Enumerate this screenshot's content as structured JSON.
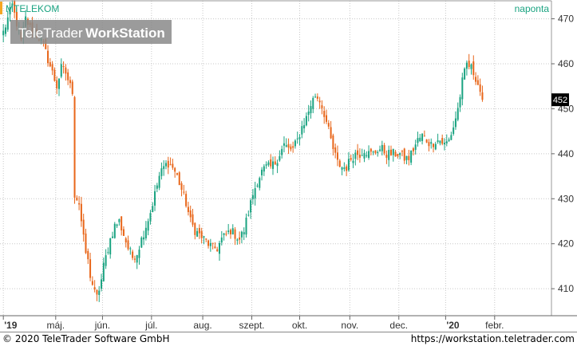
{
  "symbol": "MTELEKOM",
  "period": "naponta",
  "watermark": {
    "brand": "TeleTrader",
    "product": "WorkStation"
  },
  "footer": {
    "copyright": "© 2020 TeleTrader Software GmbH",
    "url": "https://workstation.teletrader.com"
  },
  "colors": {
    "up": "#1aa381",
    "down": "#e8661a",
    "accent": "#f5a623",
    "grid": "#c8c8c8",
    "last_marker": "#000000"
  },
  "chart_data": {
    "type": "candlestick",
    "title": "MTELEKOM",
    "ylim": [
      404,
      474
    ],
    "y_ticks": [
      410,
      420,
      430,
      440,
      450,
      460,
      470
    ],
    "y_tick_labels": [
      "410",
      "420",
      "430",
      "440",
      "450",
      "460",
      "470"
    ],
    "x_tick_labels": [
      "'19",
      "máj.",
      "jún.",
      "júl.",
      "aug.",
      "szept.",
      "okt.",
      "nov.",
      "dec.",
      "'20",
      "febr."
    ],
    "x_tick_positions": [
      0,
      23.5,
      44.5,
      66.5,
      89.5,
      111.5,
      133,
      155.5,
      177.5,
      198.5,
      220.5
    ],
    "x_range": [
      -1.5,
      246
    ],
    "last_value": 452,
    "last_label": "452",
    "anchors": [
      [
        0,
        467
      ],
      [
        2,
        470
      ],
      [
        4,
        473
      ],
      [
        6,
        469
      ],
      [
        8,
        465
      ],
      [
        10,
        470
      ],
      [
        12,
        468
      ],
      [
        14,
        467
      ],
      [
        16,
        466
      ],
      [
        18,
        464
      ],
      [
        20,
        461
      ],
      [
        22,
        458
      ],
      [
        24,
        455
      ],
      [
        26,
        459
      ],
      [
        28,
        458
      ],
      [
        30,
        455
      ],
      [
        31,
        454
      ],
      [
        32,
        431
      ],
      [
        33,
        430
      ],
      [
        34,
        429
      ],
      [
        35,
        425
      ],
      [
        36,
        421
      ],
      [
        37,
        418
      ],
      [
        38,
        416
      ],
      [
        39,
        413
      ],
      [
        40,
        411
      ],
      [
        41,
        409
      ],
      [
        42,
        408
      ],
      [
        43,
        410
      ],
      [
        44,
        412
      ],
      [
        45,
        415
      ],
      [
        46,
        417
      ],
      [
        47,
        419
      ],
      [
        48,
        421
      ],
      [
        50,
        424
      ],
      [
        52,
        425
      ],
      [
        54,
        422
      ],
      [
        56,
        419
      ],
      [
        58,
        417
      ],
      [
        60,
        418
      ],
      [
        62,
        421
      ],
      [
        64,
        424
      ],
      [
        66,
        427
      ],
      [
        68,
        431
      ],
      [
        70,
        435
      ],
      [
        72,
        437
      ],
      [
        74,
        438
      ],
      [
        76,
        437
      ],
      [
        78,
        435
      ],
      [
        80,
        432
      ],
      [
        82,
        429
      ],
      [
        84,
        425
      ],
      [
        86,
        423
      ],
      [
        88,
        422
      ],
      [
        90,
        421
      ],
      [
        92,
        420
      ],
      [
        94,
        419
      ],
      [
        96,
        419
      ],
      [
        98,
        421
      ],
      [
        100,
        422
      ],
      [
        102,
        423
      ],
      [
        104,
        422
      ],
      [
        106,
        421
      ],
      [
        108,
        423
      ],
      [
        110,
        427
      ],
      [
        112,
        431
      ],
      [
        114,
        434
      ],
      [
        116,
        436
      ],
      [
        118,
        437
      ],
      [
        120,
        437
      ],
      [
        122,
        438
      ],
      [
        124,
        440
      ],
      [
        126,
        442
      ],
      [
        128,
        441
      ],
      [
        130,
        441
      ],
      [
        132,
        443
      ],
      [
        134,
        446
      ],
      [
        136,
        448
      ],
      [
        138,
        451
      ],
      [
        140,
        453
      ],
      [
        142,
        452
      ],
      [
        144,
        449
      ],
      [
        146,
        445
      ],
      [
        148,
        441
      ],
      [
        150,
        438
      ],
      [
        152,
        437
      ],
      [
        154,
        437
      ],
      [
        156,
        439
      ],
      [
        158,
        440
      ],
      [
        160,
        440
      ],
      [
        162,
        441
      ],
      [
        164,
        440
      ],
      [
        166,
        440
      ],
      [
        168,
        441
      ],
      [
        170,
        441
      ],
      [
        172,
        440
      ],
      [
        174,
        440
      ],
      [
        176,
        440
      ],
      [
        178,
        440
      ],
      [
        180,
        439
      ],
      [
        182,
        439
      ],
      [
        184,
        441
      ],
      [
        186,
        443
      ],
      [
        188,
        444
      ],
      [
        190,
        443
      ],
      [
        192,
        442
      ],
      [
        194,
        443
      ],
      [
        196,
        443
      ],
      [
        198,
        442
      ],
      [
        200,
        443
      ],
      [
        202,
        446
      ],
      [
        204,
        450
      ],
      [
        206,
        456
      ],
      [
        208,
        460
      ],
      [
        210,
        459
      ],
      [
        212,
        457
      ],
      [
        214,
        454
      ],
      [
        215,
        452
      ]
    ]
  }
}
